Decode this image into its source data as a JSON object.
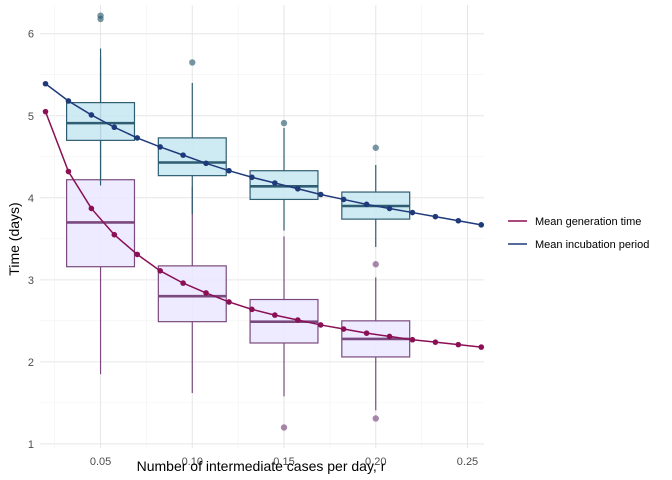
{
  "chart_data": {
    "type": "line",
    "xlabel": "Number of intermediate cases per day, r",
    "ylabel": "Time (days)",
    "xlim": [
      0.017,
      0.259
    ],
    "ylim": [
      0.95,
      6.35
    ],
    "x_ticks": [
      0.05,
      0.1,
      0.15,
      0.2,
      0.25
    ],
    "x_tick_labels": [
      "0.05",
      "0.10",
      "0.15",
      "0.20",
      "0.25"
    ],
    "y_ticks": [
      1,
      2,
      3,
      4,
      5,
      6
    ],
    "y_tick_labels": [
      "1",
      "2",
      "3",
      "4",
      "5",
      "6"
    ],
    "grid": true,
    "legend_position": "right",
    "series": [
      {
        "name": "Mean generation time",
        "color": "#8b0f55",
        "x": [
          0.02,
          0.0325,
          0.045,
          0.0575,
          0.07,
          0.0825,
          0.095,
          0.1075,
          0.12,
          0.1325,
          0.145,
          0.1575,
          0.17,
          0.1825,
          0.195,
          0.2075,
          0.22,
          0.2325,
          0.245,
          0.2575
        ],
        "y": [
          5.05,
          4.32,
          3.87,
          3.55,
          3.31,
          3.11,
          2.96,
          2.84,
          2.73,
          2.64,
          2.57,
          2.51,
          2.45,
          2.4,
          2.35,
          2.31,
          2.27,
          2.24,
          2.21,
          2.18
        ]
      },
      {
        "name": "Mean incubation period",
        "color": "#1f3a7a",
        "x": [
          0.02,
          0.0325,
          0.045,
          0.0575,
          0.07,
          0.0825,
          0.095,
          0.1075,
          0.12,
          0.1325,
          0.145,
          0.1575,
          0.17,
          0.1825,
          0.195,
          0.2075,
          0.22,
          0.2325,
          0.245,
          0.2575
        ],
        "y": [
          5.39,
          5.18,
          5.01,
          4.86,
          4.73,
          4.62,
          4.52,
          4.42,
          4.33,
          4.25,
          4.18,
          4.11,
          4.04,
          3.98,
          3.92,
          3.87,
          3.82,
          3.77,
          3.72,
          3.67
        ]
      }
    ],
    "boxplots": [
      {
        "group": "generation",
        "fill": "#ebe6ff",
        "stroke": "#7a4a7e",
        "boxes": [
          {
            "x": 0.05,
            "min": 1.85,
            "q1": 3.16,
            "median": 3.7,
            "q3": 4.22,
            "max": 5.72,
            "outliers": []
          },
          {
            "x": 0.1,
            "min": 1.62,
            "q1": 2.49,
            "median": 2.8,
            "q3": 3.17,
            "max": 4.13,
            "outliers": []
          },
          {
            "x": 0.15,
            "min": 1.58,
            "q1": 2.23,
            "median": 2.49,
            "q3": 2.76,
            "max": 3.53,
            "outliers": [
              1.2
            ]
          },
          {
            "x": 0.2,
            "min": 1.41,
            "q1": 2.06,
            "median": 2.28,
            "q3": 2.5,
            "max": 3.03,
            "outliers": [
              1.31,
              3.19
            ]
          }
        ]
      },
      {
        "group": "incubation",
        "fill": "#c5e6f1",
        "stroke": "#2f5d72",
        "boxes": [
          {
            "x": 0.05,
            "min": 4.15,
            "q1": 4.7,
            "median": 4.91,
            "q3": 5.16,
            "max": 5.82,
            "outliers": [
              6.18,
              6.22
            ]
          },
          {
            "x": 0.1,
            "min": 3.8,
            "q1": 4.27,
            "median": 4.43,
            "q3": 4.73,
            "max": 5.4,
            "outliers": [
              5.65
            ]
          },
          {
            "x": 0.15,
            "min": 3.6,
            "q1": 3.98,
            "median": 4.14,
            "q3": 4.33,
            "max": 4.85,
            "outliers": [
              4.91
            ]
          },
          {
            "x": 0.2,
            "min": 3.4,
            "q1": 3.74,
            "median": 3.9,
            "q3": 4.07,
            "max": 4.4,
            "outliers": [
              4.61
            ]
          }
        ]
      }
    ]
  }
}
